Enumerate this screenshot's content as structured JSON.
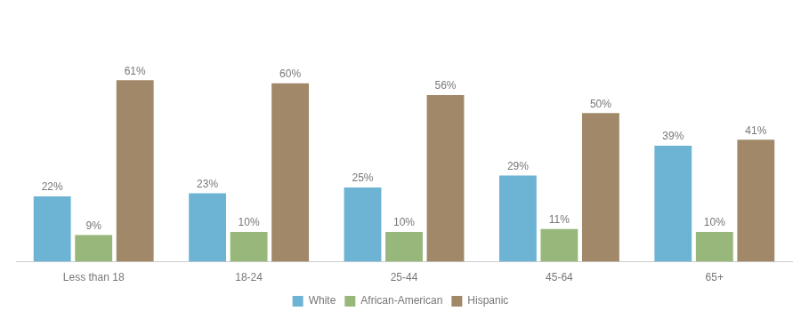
{
  "chart_data": {
    "type": "bar",
    "categories": [
      "Less than 18",
      "18-24",
      "25-44",
      "45-64",
      "65+"
    ],
    "series": [
      {
        "name": "White",
        "color": "#6db3d4",
        "values": [
          22,
          23,
          25,
          29,
          39
        ],
        "value_labels": [
          "22%",
          "23%",
          "25%",
          "29%",
          "39%"
        ]
      },
      {
        "name": "African-American",
        "color": "#97b87a",
        "values": [
          9,
          10,
          10,
          11,
          10
        ],
        "value_labels": [
          "9%",
          "10%",
          "10%",
          "11%",
          "10%"
        ]
      },
      {
        "name": "Hispanic",
        "color": "#a08868",
        "values": [
          61,
          60,
          56,
          50,
          41
        ],
        "value_labels": [
          "61%",
          "60%",
          "56%",
          "50%",
          "41%"
        ]
      }
    ],
    "ylim": [
      0,
      85
    ],
    "yticks": [],
    "grid": false,
    "legend": "bottom",
    "data_labels": true,
    "tick_labels": "x"
  }
}
